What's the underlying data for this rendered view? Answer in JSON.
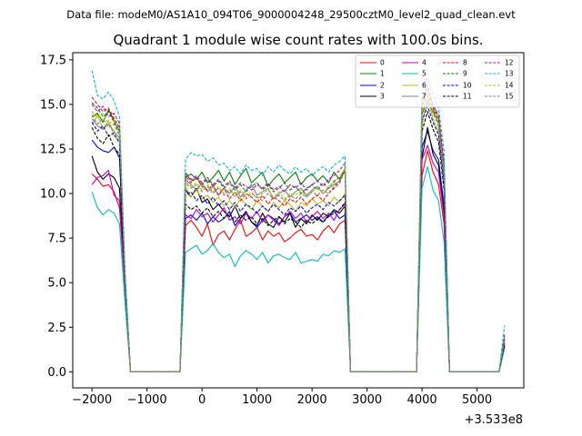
{
  "figure": {
    "suptitle": "Data file: modeM0/AS1A10_094T06_9000004248_29500cztM0_level2_quad_clean.evt",
    "title": "Quadrant 1 module wise count rates with 100.0s bins.",
    "x_offset_label": "+3.533e8"
  },
  "chart_data": {
    "type": "line",
    "title": "Quadrant 1 module wise count rates with 100.0s bins.",
    "xlabel": "",
    "ylabel": "",
    "x_offset_label": "+3.533e8",
    "xlim": [
      -2350,
      5850
    ],
    "ylim": [
      -0.9,
      17.9
    ],
    "xticks": [
      -2000,
      -1000,
      0,
      1000,
      2000,
      3000,
      4000,
      5000
    ],
    "xtick_labels": [
      "−2000",
      "−1000",
      "0",
      "1000",
      "2000",
      "3000",
      "4000",
      "5000"
    ],
    "yticks": [
      0.0,
      2.5,
      5.0,
      7.5,
      10.0,
      12.5,
      15.0,
      17.5
    ],
    "ytick_labels": [
      "0.0",
      "2.5",
      "5.0",
      "7.5",
      "10.0",
      "12.5",
      "15.0",
      "17.5"
    ],
    "grid": false,
    "legend_position": "top-right",
    "segments": [
      {
        "x_start": -2000,
        "step": 100,
        "count": 7
      },
      {
        "x_start": -300,
        "step": 100,
        "count": 30
      },
      {
        "x_start": 4000,
        "step": 100,
        "count": 5
      },
      {
        "x_start": 5500,
        "step": 100,
        "count": 1
      }
    ],
    "zero_ranges": [
      [
        -1300,
        -400
      ],
      [
        2700,
        3900
      ],
      [
        4500,
        5400
      ]
    ],
    "series": [
      {
        "name": "0",
        "color": "#ff0000",
        "dash": "solid",
        "base": 8.0,
        "seg1": [
          11.1,
          10.8,
          10.4,
          10.5,
          10.1,
          9.2,
          4.8
        ],
        "seg2": [
          8.2,
          8.5,
          8.1,
          7.6,
          8.3,
          7.1,
          7.7,
          7.9,
          7.4,
          8.0,
          8.5,
          7.6,
          7.8,
          8.1,
          7.4,
          7.9,
          7.6,
          7.8,
          7.3,
          7.5,
          7.8,
          8.0,
          7.6,
          7.7,
          7.4,
          7.9,
          8.2,
          7.8,
          8.3,
          8.5
        ],
        "seg3": [
          11.0,
          12.4,
          11.2,
          10.5,
          8.3
        ],
        "seg4": [
          1.4
        ]
      },
      {
        "name": "1",
        "color": "#008000",
        "dash": "solid",
        "base": 10.7,
        "seg1": [
          14.3,
          14.5,
          14.0,
          14.7,
          14.1,
          13.5,
          5.3
        ],
        "seg2": [
          10.9,
          11.1,
          10.8,
          11.2,
          10.6,
          10.9,
          11.3,
          10.7,
          11.2,
          10.5,
          11.0,
          11.4,
          10.6,
          10.9,
          11.2,
          10.4,
          10.8,
          11.1,
          10.6,
          10.9,
          11.2,
          10.5,
          10.9,
          11.1,
          10.7,
          11.0,
          10.6,
          11.2,
          10.8,
          11.4
        ],
        "seg3": [
          14.5,
          15.1,
          14.6,
          14.0,
          11.6
        ],
        "seg4": [
          1.8
        ]
      },
      {
        "name": "2",
        "color": "#0000ff",
        "dash": "solid",
        "base": 8.6,
        "seg1": [
          13.0,
          12.6,
          12.4,
          12.3,
          12.6,
          12.0,
          4.9
        ],
        "seg2": [
          8.6,
          8.8,
          8.5,
          8.9,
          8.3,
          8.7,
          8.4,
          8.6,
          9.0,
          8.2,
          8.6,
          8.9,
          8.4,
          8.1,
          8.5,
          8.8,
          8.6,
          8.3,
          8.7,
          8.9,
          8.4,
          8.6,
          8.8,
          8.5,
          8.7,
          8.4,
          8.8,
          9.0,
          8.6,
          8.8
        ],
        "seg3": [
          12.6,
          13.5,
          12.4,
          11.9,
          9.3
        ],
        "seg4": [
          1.5
        ]
      },
      {
        "name": "3",
        "color": "#000000",
        "dash": "solid",
        "base": 8.8,
        "seg1": [
          12.1,
          11.2,
          10.8,
          11.1,
          10.9,
          10.3,
          4.7
        ],
        "seg2": [
          10.2,
          9.8,
          10.3,
          9.5,
          9.7,
          9.1,
          9.4,
          9.0,
          8.7,
          9.3,
          8.6,
          9.0,
          8.4,
          8.2,
          8.9,
          8.3,
          8.1,
          8.7,
          8.4,
          8.9,
          8.1,
          8.6,
          8.3,
          8.8,
          8.5,
          8.9,
          8.7,
          9.1,
          8.9,
          9.3
        ],
        "seg3": [
          12.0,
          13.7,
          12.2,
          11.6,
          8.9
        ],
        "seg4": [
          1.5
        ]
      },
      {
        "name": "4",
        "color": "#c000c0",
        "dash": "solid",
        "base": 8.8,
        "seg1": [
          10.5,
          10.9,
          11.0,
          11.3,
          9.9,
          9.6,
          4.6
        ],
        "seg2": [
          8.8,
          8.6,
          9.1,
          8.7,
          8.9,
          8.4,
          8.8,
          9.2,
          8.5,
          8.7,
          8.3,
          8.9,
          8.6,
          9.0,
          8.4,
          8.8,
          8.5,
          8.2,
          8.7,
          9.0,
          8.6,
          8.9,
          8.4,
          8.7,
          9.0,
          8.6,
          8.9,
          8.5,
          9.1,
          9.4
        ],
        "seg3": [
          11.9,
          12.7,
          11.7,
          11.2,
          8.7
        ],
        "seg4": [
          1.6
        ]
      },
      {
        "name": "5",
        "color": "#00bfbf",
        "dash": "solid",
        "base": 6.4,
        "seg1": [
          10.1,
          9.2,
          8.8,
          9.1,
          8.9,
          8.3,
          3.9
        ],
        "seg2": [
          6.7,
          6.9,
          7.1,
          6.6,
          6.8,
          7.2,
          6.7,
          6.4,
          6.6,
          5.9,
          6.5,
          6.8,
          6.6,
          6.3,
          6.7,
          6.1,
          6.5,
          6.6,
          6.4,
          6.3,
          6.7,
          6.1,
          6.2,
          6.3,
          6.2,
          6.6,
          6.5,
          6.8,
          6.7,
          6.9
        ],
        "seg3": [
          10.3,
          11.5,
          10.2,
          9.6,
          7.3
        ],
        "seg4": [
          1.3
        ]
      },
      {
        "name": "6",
        "color": "#bfbf00",
        "dash": "solid",
        "base": 9.3,
        "seg1": [
          13.9,
          14.4,
          13.6,
          14.1,
          13.2,
          13.0,
          5.2
        ],
        "seg2": [
          10.4,
          9.8,
          10.2,
          9.7,
          9.9,
          9.5,
          9.8,
          9.3,
          9.6,
          9.2,
          9.7,
          9.4,
          9.1,
          9.6,
          9.3,
          9.0,
          9.5,
          9.2,
          9.6,
          9.4,
          9.0,
          9.5,
          9.3,
          9.7,
          9.4,
          9.6,
          9.3,
          9.8,
          9.5,
          10.0
        ],
        "seg3": [
          13.8,
          15.4,
          14.2,
          13.5,
          10.8
        ],
        "seg4": [
          1.7
        ]
      },
      {
        "name": "7",
        "color": "#808080",
        "dash": "solid",
        "base": 10.0,
        "seg1": [
          14.2,
          13.8,
          13.6,
          13.9,
          13.5,
          13.1,
          5.1
        ],
        "seg2": [
          10.8,
          10.5,
          10.2,
          10.6,
          10.1,
          10.4,
          9.9,
          10.3,
          10.0,
          10.4,
          9.8,
          10.2,
          10.5,
          9.9,
          10.1,
          10.3,
          9.7,
          10.0,
          10.2,
          9.8,
          10.1,
          10.3,
          9.9,
          10.2,
          10.4,
          10.0,
          10.3,
          10.5,
          10.7,
          11.3
        ],
        "seg3": [
          14.6,
          15.2,
          14.8,
          13.9,
          11.4
        ],
        "seg4": [
          1.7
        ]
      },
      {
        "name": "8",
        "color": "#ff0000",
        "dash": "dashed",
        "base": 9.5,
        "seg1": [
          15.4,
          15.0,
          14.6,
          14.8,
          14.2,
          13.7,
          5.5
        ],
        "seg2": [
          11.0,
          10.6,
          10.9,
          10.4,
          10.2,
          10.5,
          9.9,
          10.3,
          9.7,
          10.1,
          9.6,
          10.0,
          9.8,
          9.5,
          9.9,
          9.4,
          9.8,
          9.6,
          9.3,
          9.7,
          9.5,
          9.8,
          9.4,
          9.7,
          9.9,
          9.6,
          10.0,
          10.3,
          10.6,
          11.3
        ],
        "seg3": [
          14.8,
          15.8,
          14.9,
          14.3,
          11.5
        ],
        "seg4": [
          2.0
        ]
      },
      {
        "name": "9",
        "color": "#008000",
        "dash": "dashed",
        "base": 10.2,
        "seg1": [
          15.1,
          14.8,
          14.3,
          14.6,
          14.0,
          13.4,
          5.4
        ],
        "seg2": [
          11.2,
          10.7,
          10.9,
          10.5,
          10.8,
          10.4,
          10.7,
          10.3,
          10.6,
          10.2,
          10.5,
          10.1,
          10.4,
          10.6,
          10.2,
          10.5,
          10.1,
          10.3,
          10.6,
          10.2,
          10.4,
          10.0,
          10.3,
          10.5,
          10.2,
          10.6,
          10.3,
          10.7,
          10.9,
          11.4
        ],
        "seg3": [
          15.0,
          15.5,
          14.8,
          14.1,
          11.7
        ],
        "seg4": [
          1.9
        ]
      },
      {
        "name": "10",
        "color": "#0000ff",
        "dash": "dashed",
        "base": 9.3,
        "seg1": [
          14.0,
          13.5,
          13.8,
          13.2,
          13.4,
          12.8,
          5.0
        ],
        "seg2": [
          9.9,
          10.1,
          9.6,
          9.9,
          9.4,
          9.8,
          9.3,
          9.6,
          9.1,
          9.5,
          9.0,
          9.4,
          9.2,
          8.9,
          9.3,
          9.0,
          9.4,
          9.1,
          8.8,
          9.2,
          9.0,
          9.3,
          8.9,
          9.2,
          9.4,
          9.1,
          9.5,
          9.3,
          9.6,
          9.9
        ],
        "seg3": [
          14.1,
          14.9,
          14.0,
          13.3,
          10.6
        ],
        "seg4": [
          1.8
        ]
      },
      {
        "name": "11",
        "color": "#000000",
        "dash": "dashed",
        "base": 8.6,
        "seg1": [
          13.7,
          13.1,
          12.8,
          13.3,
          12.6,
          12.2,
          4.9
        ],
        "seg2": [
          9.4,
          9.1,
          9.3,
          8.9,
          9.2,
          8.7,
          9.0,
          8.6,
          8.9,
          8.4,
          8.8,
          8.5,
          8.7,
          8.3,
          8.6,
          8.2,
          8.5,
          8.7,
          8.3,
          8.6,
          8.4,
          8.1,
          8.5,
          8.3,
          8.6,
          8.4,
          8.7,
          8.9,
          9.1,
          9.5
        ],
        "seg3": [
          13.5,
          14.6,
          13.6,
          12.9,
          10.2
        ],
        "seg4": [
          1.6
        ]
      },
      {
        "name": "12",
        "color": "#c000c0",
        "dash": "dashed",
        "base": 10.3,
        "seg1": [
          15.0,
          14.6,
          14.9,
          14.3,
          14.5,
          13.9,
          5.6
        ],
        "seg2": [
          11.1,
          10.8,
          11.0,
          10.6,
          10.9,
          10.5,
          10.8,
          10.4,
          10.7,
          10.3,
          10.6,
          10.4,
          10.2,
          10.5,
          10.3,
          10.6,
          10.2,
          10.4,
          10.1,
          10.5,
          10.3,
          10.6,
          10.2,
          10.5,
          10.7,
          10.4,
          10.8,
          11.0,
          11.3,
          11.7
        ],
        "seg3": [
          15.2,
          16.1,
          15.0,
          14.4,
          11.8
        ],
        "seg4": [
          2.1
        ]
      },
      {
        "name": "13",
        "color": "#00bfbf",
        "dash": "dashed",
        "base": 11.4,
        "seg1": [
          16.9,
          15.5,
          15.3,
          15.7,
          15.2,
          14.3,
          5.8
        ],
        "seg2": [
          11.9,
          12.3,
          12.1,
          12.2,
          11.8,
          12.0,
          11.6,
          11.7,
          11.3,
          11.5,
          11.1,
          11.6,
          11.3,
          11.4,
          11.0,
          11.5,
          11.2,
          11.6,
          11.3,
          11.1,
          11.5,
          11.2,
          11.4,
          11.0,
          11.3,
          11.5,
          11.2,
          11.6,
          11.8,
          12.1
        ],
        "seg3": [
          15.9,
          16.5,
          15.6,
          14.8,
          12.4
        ],
        "seg4": [
          2.6
        ]
      },
      {
        "name": "14",
        "color": "#bfbf00",
        "dash": "dashed",
        "base": 9.9,
        "seg1": [
          14.6,
          14.2,
          14.5,
          13.9,
          14.1,
          13.4,
          5.3
        ],
        "seg2": [
          10.7,
          10.4,
          10.6,
          10.2,
          10.5,
          10.1,
          10.4,
          10.0,
          10.3,
          9.9,
          10.2,
          9.8,
          10.1,
          9.7,
          10.0,
          10.2,
          9.8,
          10.1,
          9.7,
          10.0,
          9.9,
          10.2,
          9.8,
          10.1,
          10.3,
          10.0,
          10.4,
          10.6,
          10.9,
          11.4
        ],
        "seg3": [
          14.6,
          15.7,
          14.7,
          14.0,
          11.2
        ],
        "seg4": [
          1.9
        ]
      },
      {
        "name": "15",
        "color": "#808080",
        "dash": "dashed",
        "base": 9.8,
        "seg1": [
          14.4,
          13.9,
          14.2,
          13.7,
          13.9,
          13.2,
          5.2
        ],
        "seg2": [
          10.6,
          10.3,
          10.5,
          10.1,
          10.4,
          10.0,
          10.3,
          9.9,
          10.2,
          9.8,
          10.1,
          9.7,
          10.0,
          9.8,
          9.6,
          10.0,
          9.7,
          9.9,
          9.6,
          9.9,
          9.7,
          10.0,
          9.8,
          10.1,
          9.9,
          10.2,
          10.0,
          10.4,
          10.7,
          11.2
        ],
        "seg3": [
          14.4,
          15.3,
          14.5,
          13.8,
          11.1
        ],
        "seg4": [
          1.8
        ]
      }
    ]
  }
}
